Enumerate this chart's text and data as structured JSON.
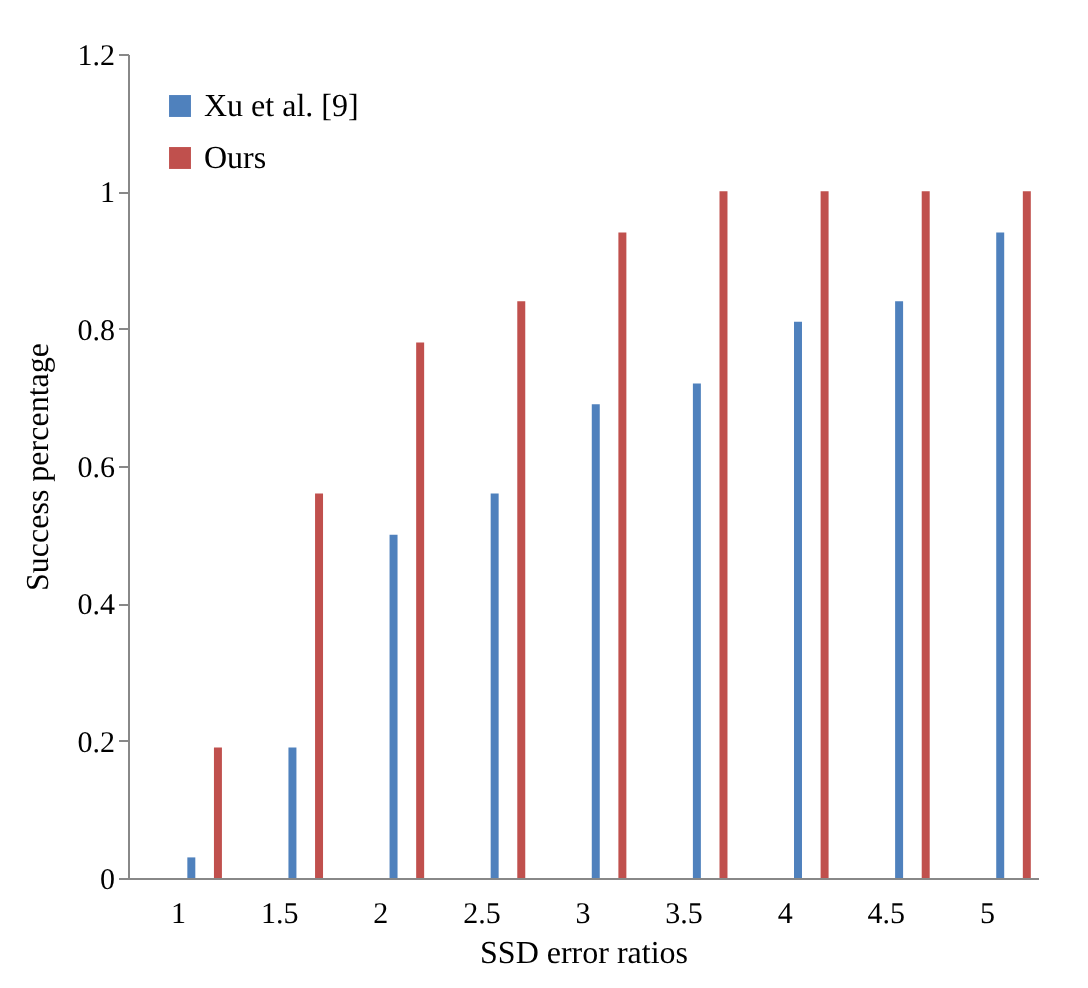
{
  "chart_data": {
    "type": "bar",
    "xlabel": "SSD error ratios",
    "ylabel": "Success percentage",
    "categories": [
      "1",
      "1.5",
      "2",
      "2.5",
      "3",
      "3.5",
      "4",
      "4.5",
      "5"
    ],
    "series": [
      {
        "name": "Xu et al. [9]",
        "color": "#4f81bd",
        "values": [
          0.03,
          0.19,
          0.5,
          0.56,
          0.69,
          0.72,
          0.81,
          0.84,
          0.94
        ]
      },
      {
        "name": "Ours",
        "color": "#c0504d",
        "values": [
          0.19,
          0.56,
          0.78,
          0.84,
          0.94,
          1,
          1,
          1,
          1
        ]
      }
    ],
    "ylim": [
      0,
      1.2
    ],
    "yticks": [
      0,
      0.2,
      0.4,
      0.6,
      0.8,
      1,
      1.2
    ],
    "grid": false,
    "legend": "top left"
  }
}
